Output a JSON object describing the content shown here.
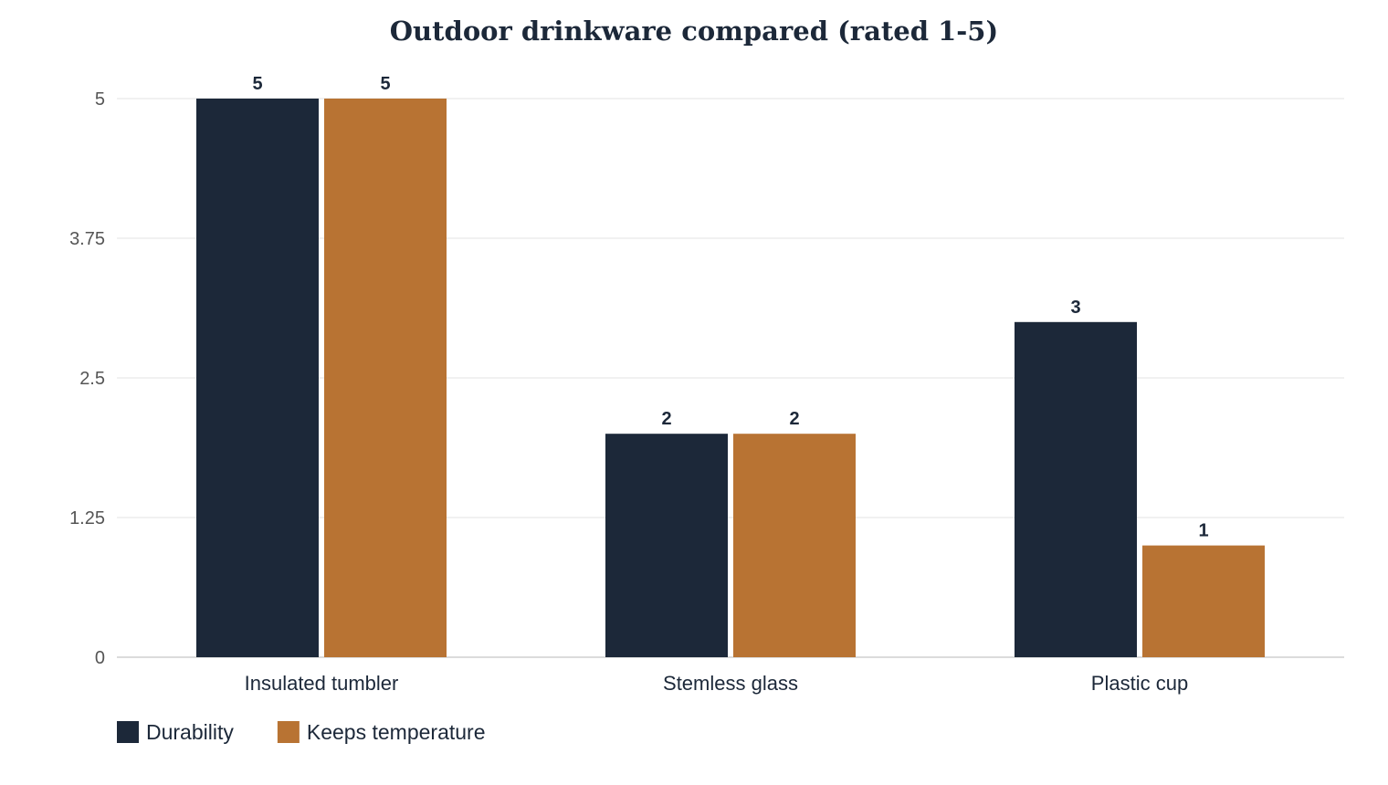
{
  "chart_data": {
    "type": "bar",
    "title": "Outdoor drinkware compared (rated 1-5)",
    "xlabel": "",
    "ylabel": "",
    "categories": [
      "Insulated tumbler",
      "Stemless glass",
      "Plastic cup"
    ],
    "series": [
      {
        "name": "Durability",
        "values": [
          5,
          2,
          3
        ],
        "color": "#1c2839"
      },
      {
        "name": "Keeps temperature",
        "values": [
          5,
          2,
          1
        ],
        "color": "#b87333"
      }
    ],
    "ylim": [
      0,
      5
    ],
    "yticks": [
      0,
      1.25,
      2.5,
      3.75,
      5
    ],
    "ytick_labels": [
      "0",
      "1.25",
      "2.5",
      "3.75",
      "5"
    ],
    "grid": true,
    "data_labels": true,
    "legend_position": "bottom-left"
  }
}
